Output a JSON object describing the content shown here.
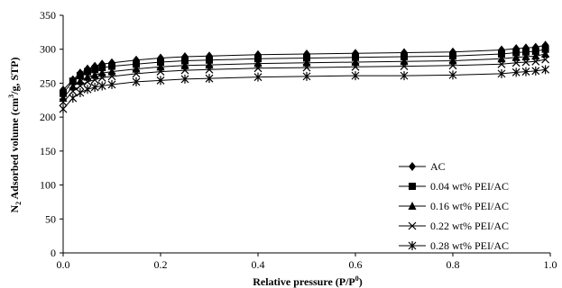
{
  "chart_data": {
    "type": "scatter",
    "xlabel": "Relative pressure (P/P",
    "xlabel_sup": "0",
    "xlabel_tail": ")",
    "ylabel_parts": [
      "N",
      "2",
      " Adsorbed volume (cm",
      "3",
      "/g, STP)"
    ],
    "xlim": [
      0,
      1
    ],
    "ylim": [
      0,
      350
    ],
    "xticks": [
      "0.0",
      "0.2",
      "0.4",
      "0.6",
      "0.8",
      "1.0"
    ],
    "yticks": [
      "0",
      "50",
      "100",
      "150",
      "200",
      "250",
      "300",
      "350"
    ],
    "grid": false,
    "legend_position": "right",
    "series": [
      {
        "name": "AC",
        "marker": "diamond",
        "x": [
          0.0,
          0.02,
          0.035,
          0.05,
          0.065,
          0.08,
          0.1,
          0.15,
          0.2,
          0.25,
          0.3,
          0.4,
          0.5,
          0.6,
          0.7,
          0.8,
          0.9,
          0.93,
          0.95,
          0.97,
          0.99
        ],
        "y": [
          240,
          255,
          265,
          271,
          275,
          278,
          280,
          284,
          287,
          289,
          290,
          292,
          293,
          294,
          295,
          296,
          299,
          301,
          302,
          303,
          306
        ]
      },
      {
        "name": "0.04 wt% PEI/AC",
        "marker": "square",
        "x": [
          0.0,
          0.02,
          0.035,
          0.05,
          0.065,
          0.08,
          0.1,
          0.15,
          0.2,
          0.25,
          0.3,
          0.4,
          0.5,
          0.6,
          0.7,
          0.8,
          0.9,
          0.93,
          0.95,
          0.97,
          0.99
        ],
        "y": [
          235,
          253,
          261,
          267,
          270,
          273,
          275,
          278,
          281,
          283,
          284,
          286,
          287,
          288,
          289,
          290,
          293,
          295,
          296,
          297,
          300
        ]
      },
      {
        "name": "0.16 wt% PEI/AC",
        "marker": "triangle",
        "x": [
          0.0,
          0.02,
          0.035,
          0.05,
          0.065,
          0.08,
          0.1,
          0.15,
          0.2,
          0.25,
          0.3,
          0.4,
          0.5,
          0.6,
          0.7,
          0.8,
          0.9,
          0.93,
          0.95,
          0.97,
          0.99
        ],
        "y": [
          228,
          245,
          253,
          259,
          262,
          265,
          267,
          271,
          274,
          276,
          277,
          279,
          280,
          281,
          282,
          283,
          286,
          288,
          289,
          290,
          293
        ]
      },
      {
        "name": "0.22 wt% PEI/AC",
        "marker": "x",
        "x": [
          0.0,
          0.02,
          0.035,
          0.05,
          0.065,
          0.08,
          0.1,
          0.15,
          0.2,
          0.25,
          0.3,
          0.4,
          0.5,
          0.6,
          0.7,
          0.8,
          0.9,
          0.93,
          0.95,
          0.97,
          0.99
        ],
        "y": [
          222,
          238,
          246,
          252,
          255,
          258,
          260,
          264,
          267,
          269,
          270,
          272,
          273,
          274,
          275,
          276,
          278,
          280,
          281,
          282,
          285
        ]
      },
      {
        "name": "0.28 wt% PEI/AC",
        "marker": "asterisk",
        "x": [
          0.0,
          0.02,
          0.035,
          0.05,
          0.065,
          0.08,
          0.1,
          0.15,
          0.2,
          0.25,
          0.3,
          0.4,
          0.5,
          0.6,
          0.7,
          0.8,
          0.9,
          0.93,
          0.95,
          0.97,
          0.99
        ],
        "y": [
          212,
          228,
          236,
          241,
          244,
          246,
          248,
          252,
          254,
          256,
          257,
          259,
          260,
          261,
          261,
          262,
          264,
          266,
          267,
          268,
          270
        ]
      }
    ]
  }
}
